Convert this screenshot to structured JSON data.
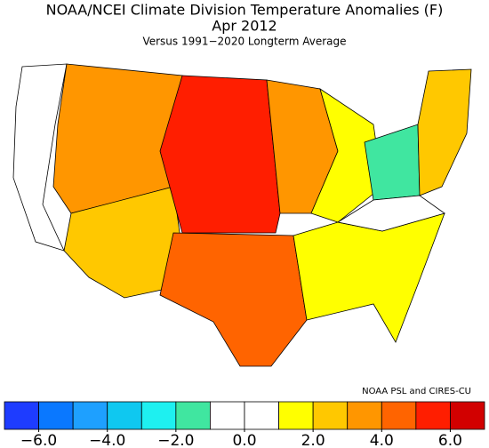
{
  "title": "NOAA/NCEI Climate Division Temperature Anomalies (F)",
  "subtitle": "Apr 2012",
  "note": "Versus 1991−2020 Longterm Average",
  "credit": "NOAA PSL and CIRES-CU",
  "map": {
    "anomalies": [
      0.5,
      3,
      2.5,
      5,
      4,
      3.5,
      1.5,
      -1.5,
      1.5,
      2.5,
      0.5
    ]
  },
  "colorbar": {
    "lim": [
      -7,
      7
    ],
    "colors": [
      "#1e3cff",
      "#0a78ff",
      "#1ea0ff",
      "#0fc8f0",
      "#1ef0f0",
      "#40e6a0",
      "#ffffff",
      "#ffffff",
      "#ffff00",
      "#ffc800",
      "#ff9600",
      "#ff6400",
      "#ff1e00",
      "#d20000"
    ],
    "ticks": [
      {
        "value": -6,
        "label": "−6.0"
      },
      {
        "value": -4,
        "label": "−4.0"
      },
      {
        "value": -2,
        "label": "−2.0"
      },
      {
        "value": 0,
        "label": "0.0"
      },
      {
        "value": 2,
        "label": "2.0"
      },
      {
        "value": 4,
        "label": "4.0"
      },
      {
        "value": 6,
        "label": "6.0"
      }
    ]
  }
}
